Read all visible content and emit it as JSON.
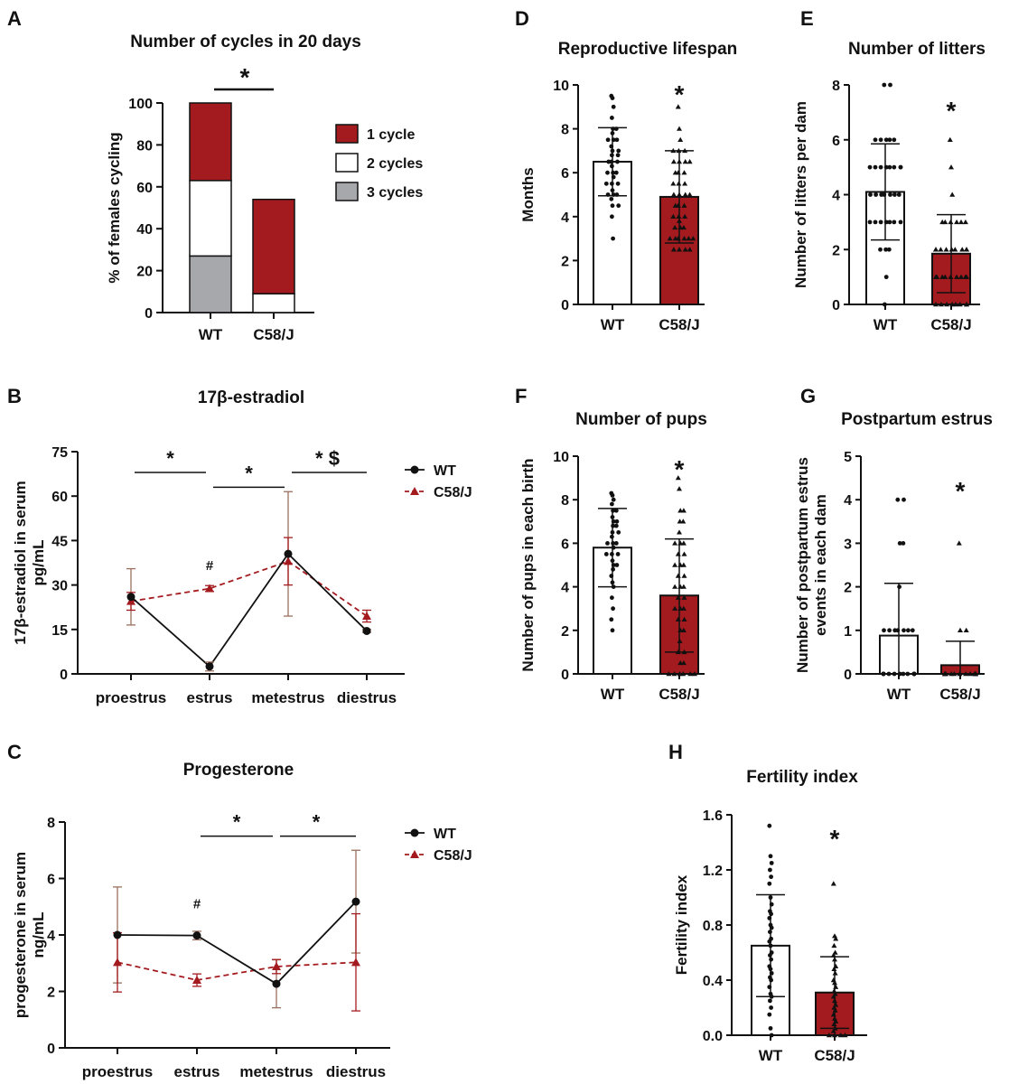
{
  "colors": {
    "red": "#a41b1f",
    "dark": "#111111",
    "white": "#ffffff",
    "grey": "#a7a8ac",
    "errbrown": "#9b6f5e"
  },
  "chart_data": [
    {
      "id": "A",
      "label": "A",
      "type": "stacked-bar",
      "title": "Number of cycles in 20 days",
      "ylabel": "% of females cycling",
      "categories": [
        "WT",
        "C58/J"
      ],
      "ylim": [
        0,
        100
      ],
      "yticks": [
        "0",
        "20",
        "40",
        "60",
        "80",
        "100"
      ],
      "series": [
        {
          "name": "3 cycles",
          "values": [
            27,
            0
          ],
          "color": "#a7a8ac"
        },
        {
          "name": "2 cycles",
          "values": [
            36,
            9
          ],
          "color": "#ffffff"
        },
        {
          "name": "1 cycle",
          "values": [
            37,
            45
          ],
          "color": "#a41b1f"
        }
      ],
      "legend": [
        "1 cycle",
        "2 cycles",
        "3 cycles"
      ],
      "sig": "*"
    },
    {
      "id": "B",
      "label": "B",
      "type": "line",
      "title": "17β-estradiol",
      "ylabel": [
        "17β-estradiol in serum",
        "pg/mL"
      ],
      "categories": [
        "proestrus",
        "estrus",
        "metestrus",
        "diestrus"
      ],
      "ylim": [
        0,
        75
      ],
      "yticks": [
        "0",
        "15",
        "30",
        "45",
        "60",
        "75"
      ],
      "series": [
        {
          "name": "WT",
          "values": [
            26,
            2.5,
            40.5,
            14.5
          ],
          "err": [
            9.5,
            1.5,
            21,
            0.5
          ]
        },
        {
          "name": "C58/J",
          "values": [
            24.5,
            28.8,
            38,
            19.5
          ],
          "err": [
            3,
            1,
            8,
            2
          ]
        }
      ],
      "sig": [
        {
          "text": "*",
          "from": 0,
          "to": 1,
          "y": 68
        },
        {
          "text": "*",
          "from": 1,
          "to": 2,
          "y": 63
        },
        {
          "text": "* $",
          "from": 2,
          "to": 3,
          "y": 68
        }
      ],
      "marks": [
        {
          "text": "#",
          "cat": 1,
          "y": 35
        }
      ]
    },
    {
      "id": "C",
      "label": "C",
      "type": "line",
      "title": "Progesterone",
      "ylabel": [
        "progesterone in serum",
        "ng/mL"
      ],
      "categories": [
        "proestrus",
        "estrus",
        "metestrus",
        "diestrus"
      ],
      "ylim": [
        0,
        8
      ],
      "yticks": [
        "0",
        "2",
        "4",
        "6",
        "8"
      ],
      "series": [
        {
          "name": "WT",
          "values": [
            4.0,
            3.98,
            2.27,
            5.18
          ],
          "err": [
            1.7,
            0.15,
            0.85,
            1.82
          ]
        },
        {
          "name": "C58/J",
          "values": [
            3.03,
            2.4,
            2.88,
            3.03
          ],
          "err": [
            1.05,
            0.22,
            0.25,
            1.72
          ]
        }
      ],
      "sig": [
        {
          "text": "*",
          "from": 1,
          "to": 2,
          "y": 7.5
        },
        {
          "text": "*",
          "from": 2,
          "to": 3,
          "y": 7.5
        }
      ],
      "marks": [
        {
          "text": "#",
          "cat": 1,
          "y": 4.95
        }
      ]
    },
    {
      "id": "D",
      "label": "D",
      "type": "bar-dot",
      "title": "Reproductive lifespan",
      "ylabel": "Months",
      "categories": [
        "WT",
        "C58/J"
      ],
      "ylim": [
        0,
        10
      ],
      "yticks": [
        "0",
        "2",
        "4",
        "6",
        "8",
        "10"
      ],
      "means": [
        6.5,
        4.9
      ],
      "sd": [
        1.55,
        2.1
      ],
      "sig": "*",
      "points": [
        [
          9.5,
          9.4,
          9.0,
          8.5,
          8.0,
          8.0,
          7.8,
          7.5,
          7.5,
          7.5,
          7.2,
          7.0,
          7.0,
          6.8,
          6.8,
          6.5,
          6.5,
          6.5,
          6.3,
          6.0,
          6.0,
          6.0,
          5.8,
          5.5,
          5.5,
          5.5,
          5.2,
          5.0,
          5.0,
          5.0,
          4.8,
          4.5,
          4.5,
          4.0,
          3.0
        ],
        [
          9.0,
          8.0,
          7.5,
          7.0,
          7.0,
          7.0,
          6.5,
          6.5,
          6.5,
          6.5,
          6.0,
          6.0,
          6.0,
          5.5,
          5.5,
          5.5,
          5.0,
          5.0,
          5.0,
          5.0,
          4.5,
          4.5,
          4.5,
          4.0,
          4.0,
          4.0,
          3.8,
          3.5,
          3.5,
          3.5,
          3.0,
          3.0,
          3.0,
          3.0,
          3.0,
          3.0,
          2.5,
          2.5,
          2.5,
          2.5
        ]
      ]
    },
    {
      "id": "E",
      "label": "E",
      "type": "bar-dot",
      "title": "Number of litters",
      "ylabel": "Number of litters per dam",
      "categories": [
        "WT",
        "C58/J"
      ],
      "ylim": [
        0,
        8
      ],
      "yticks": [
        "0",
        "2",
        "4",
        "6",
        "8"
      ],
      "means": [
        4.1,
        1.85
      ],
      "sd": [
        1.75,
        1.42
      ],
      "sig": "*",
      "points": [
        [
          8,
          8,
          6,
          6,
          6,
          6,
          6,
          5,
          5,
          5,
          5,
          5,
          5,
          5,
          5,
          4,
          4,
          4,
          4,
          4,
          4,
          4,
          3,
          3,
          3,
          3,
          3,
          3,
          3,
          2,
          2,
          2,
          1,
          0
        ],
        [
          6,
          5,
          4,
          3,
          3,
          3,
          3,
          3,
          3,
          2,
          2,
          2,
          2,
          2,
          2,
          2,
          2,
          2,
          1,
          1,
          1,
          1,
          1,
          1,
          1,
          1,
          1,
          0,
          0,
          0,
          0,
          0,
          0,
          0,
          0
        ]
      ]
    },
    {
      "id": "F",
      "label": "F",
      "type": "bar-dot",
      "title": "Number of pups",
      "ylabel": "Number of pups in each birth",
      "categories": [
        "WT",
        "C58/J"
      ],
      "ylim": [
        0,
        10
      ],
      "yticks": [
        "0",
        "2",
        "4",
        "6",
        "8",
        "10"
      ],
      "means": [
        5.8,
        3.6
      ],
      "sd": [
        1.8,
        2.6
      ],
      "sig": "*",
      "points": [
        [
          8.3,
          8.2,
          8.0,
          7.8,
          7.5,
          7.5,
          7.2,
          7.0,
          7.0,
          6.8,
          6.8,
          6.5,
          6.5,
          6.3,
          6.0,
          6.0,
          6.0,
          5.8,
          5.5,
          5.5,
          5.5,
          5.2,
          5.0,
          5.0,
          4.8,
          4.5,
          4.2,
          4.0,
          3.5,
          3.0,
          2.5,
          2.0
        ],
        [
          9.0,
          8.5,
          7.5,
          7.5,
          7.0,
          7.0,
          6.5,
          6.0,
          6.0,
          6.0,
          5.5,
          5.5,
          5.0,
          5.0,
          5.0,
          4.5,
          4.5,
          4.0,
          4.0,
          4.0,
          3.5,
          3.5,
          3.0,
          3.0,
          3.0,
          2.5,
          2.5,
          2.0,
          2.0,
          1.5,
          1.0,
          1.0,
          0.5,
          0.5,
          0,
          0,
          0,
          0,
          0,
          0
        ]
      ]
    },
    {
      "id": "G",
      "label": "G",
      "type": "bar-dot",
      "title": "Postpartum estrus",
      "ylabel": [
        "Number of postpartum estrus",
        "events in each dam"
      ],
      "categories": [
        "WT",
        "C58/J"
      ],
      "ylim": [
        0,
        5
      ],
      "yticks": [
        "0",
        "1",
        "2",
        "3",
        "4",
        "5"
      ],
      "means": [
        0.88,
        0.2
      ],
      "sd": [
        1.2,
        0.55
      ],
      "sig": "*",
      "points": [
        [
          4,
          4,
          3,
          3,
          2,
          1,
          1,
          1,
          1,
          1,
          1,
          1,
          0,
          0,
          0,
          0,
          0,
          0,
          0,
          0,
          0,
          0,
          0,
          0,
          0,
          0
        ],
        [
          3,
          1,
          1,
          0,
          0,
          0,
          0,
          0,
          0,
          0,
          0,
          0,
          0,
          0,
          0,
          0,
          0,
          0,
          0,
          0,
          0
        ]
      ]
    },
    {
      "id": "H",
      "label": "H",
      "type": "bar-dot",
      "title": "Fertility index",
      "ylabel": "Fertility index",
      "categories": [
        "WT",
        "C58/J"
      ],
      "ylim": [
        0,
        1.6
      ],
      "yticks": [
        "0.0",
        "0.4",
        "0.8",
        "1.2",
        "1.6"
      ],
      "means": [
        0.65,
        0.31
      ],
      "sd": [
        0.37,
        0.26
      ],
      "sig": "*",
      "points": [
        [
          1.52,
          1.3,
          1.25,
          1.2,
          1.15,
          1.1,
          1.0,
          0.95,
          0.9,
          0.88,
          0.85,
          0.8,
          0.78,
          0.75,
          0.7,
          0.68,
          0.65,
          0.6,
          0.58,
          0.55,
          0.5,
          0.48,
          0.45,
          0.42,
          0.4,
          0.35,
          0.3,
          0.28,
          0.25,
          0.2,
          0.15,
          0.05,
          0.0
        ],
        [
          1.1,
          0.72,
          0.7,
          0.65,
          0.6,
          0.58,
          0.55,
          0.5,
          0.48,
          0.45,
          0.4,
          0.38,
          0.35,
          0.32,
          0.3,
          0.28,
          0.25,
          0.22,
          0.2,
          0.18,
          0.15,
          0.12,
          0.1,
          0.08,
          0.05,
          0.03,
          0.0,
          0.0,
          0.0,
          0.0
        ]
      ]
    }
  ]
}
